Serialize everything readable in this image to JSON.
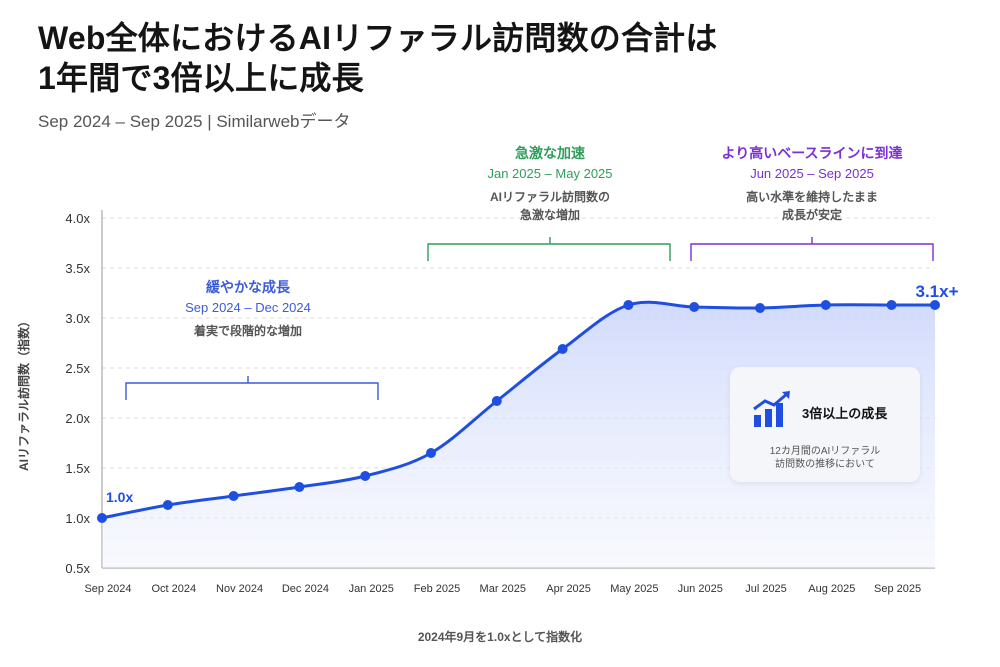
{
  "title_line1": "Web全体におけるAIリファラル訪問数の合計は",
  "title_line2": "1年間で3倍以上に成長",
  "subtitle": "Sep 2024 – Sep 2025 | Similarwebデータ",
  "footnote": "2024年9月を1.0xとして指数化",
  "callout": {
    "heading": "3倍以上の成長",
    "body_line1": "12カ月間のAIリファラル",
    "body_line2": "訪問数の推移において",
    "icon": "growth-chart-icon"
  },
  "phases": [
    {
      "title": "緩やかな成長",
      "range": "Sep 2024 – Dec 2024",
      "desc1": "着実で段階的な増加",
      "desc2": "",
      "color": "#3b5bdb"
    },
    {
      "title": "急激な加速",
      "range": "Jan 2025 – May 2025",
      "desc1": "AIリファラル訪問数の",
      "desc2": "急激な増加",
      "color": "#2f9e5a"
    },
    {
      "title": "より高いベースラインに到達",
      "range": "Jun 2025 – Sep 2025",
      "desc1": "高い水準を維持したまま",
      "desc2": "成長が安定",
      "color": "#7b2fd6"
    }
  ],
  "chart_data": {
    "type": "area",
    "categories": [
      "Sep 2024",
      "Oct 2024",
      "Nov 2024",
      "Dec 2024",
      "Jan 2025",
      "Feb 2025",
      "Mar 2025",
      "Apr 2025",
      "May 2025",
      "Jun 2025",
      "Jul 2025",
      "Aug 2025",
      "Sep 2025"
    ],
    "values": [
      1.0,
      1.13,
      1.22,
      1.31,
      1.42,
      1.65,
      2.17,
      2.69,
      3.13,
      3.11,
      3.1,
      3.13,
      3.13
    ],
    "ylabel": "AIリファラル訪問数（指数）",
    "ylim": [
      0.5,
      4.0
    ],
    "yticks": [
      "0.5x",
      "1.0x",
      "1.5x",
      "2.0x",
      "2.5x",
      "3.0x",
      "3.5x",
      "4.0x"
    ],
    "start_label": "1.0x",
    "end_label": "3.1x+",
    "line_color": "#1f4fe0",
    "grid": true
  }
}
